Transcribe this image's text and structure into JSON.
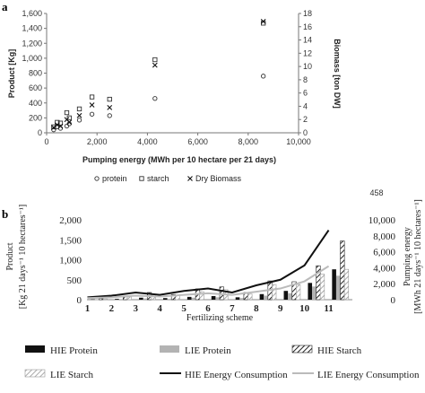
{
  "page_number": "458",
  "chart_data": [
    {
      "type": "scatter",
      "panel_label": "a",
      "xlabel": "Pumping energy (MWh per 10 hectare per 21 days)",
      "ylabel": "Product [Kg]",
      "y2label": "Biomass [ton DW]",
      "xlim": [
        0,
        10000
      ],
      "ylim": [
        0,
        1600
      ],
      "y2lim": [
        0,
        18
      ],
      "xticks": [
        "0",
        "2,000",
        "4,000",
        "6,000",
        "8,000",
        "10,000"
      ],
      "yticks": [
        "0",
        "200",
        "400",
        "600",
        "800",
        "1,000",
        "1,200",
        "1,400",
        "1,600"
      ],
      "y2ticks": [
        "0",
        "2",
        "4",
        "6",
        "8",
        "10",
        "12",
        "14",
        "16",
        "18"
      ],
      "grid": false,
      "legend_position": "bottom",
      "series": [
        {
          "name": "protein",
          "marker": "circle",
          "axis": "left",
          "x": [
            280,
            420,
            550,
            800,
            900,
            1300,
            1800,
            2500,
            4300,
            8600
          ],
          "y": [
            40,
            80,
            60,
            90,
            120,
            170,
            250,
            230,
            460,
            760
          ]
        },
        {
          "name": "starch",
          "marker": "square",
          "axis": "left",
          "x": [
            280,
            420,
            550,
            800,
            900,
            1300,
            1800,
            2500,
            4300,
            8600
          ],
          "y": [
            80,
            140,
            130,
            270,
            200,
            320,
            480,
            450,
            980,
            1470
          ]
        },
        {
          "name": "Dry Biomass",
          "marker": "x",
          "axis": "right",
          "x": [
            280,
            420,
            550,
            800,
            900,
            1300,
            1800,
            2500,
            4300,
            8600
          ],
          "y": [
            0.8,
            1.2,
            1.0,
            2.0,
            1.6,
            2.6,
            4.2,
            3.8,
            10.2,
            16.8
          ]
        }
      ]
    },
    {
      "type": "bar",
      "panel_label": "b",
      "xlabel": "Fertilizing scheme",
      "ylabel": "Product",
      "ylabel_sub": "[Kg 21 days⁻¹ 10 hectares⁻¹]",
      "y2label": "Pumping energy",
      "y2label_sub": "[MWh 21 days⁻¹ 10 hectares⁻¹]",
      "categories": [
        "1",
        "2",
        "3",
        "4",
        "5",
        "6",
        "7",
        "8",
        "9",
        "10",
        "11"
      ],
      "ylim": [
        0,
        2000
      ],
      "y2lim": [
        0,
        10000
      ],
      "yticks": [
        "0",
        "500",
        "1,000",
        "1,500",
        "2,000"
      ],
      "y2ticks": [
        "0",
        "2,000",
        "4,000",
        "6,000",
        "8,000",
        "10,000"
      ],
      "grid": false,
      "legend_position": "bottom",
      "series": [
        {
          "name": "HIE Protein",
          "type": "bar",
          "style": "black",
          "values": [
            10,
            20,
            50,
            40,
            70,
            90,
            60,
            140,
            220,
            420,
            760
          ]
        },
        {
          "name": "LIE Protein",
          "type": "bar",
          "style": "gray",
          "values": [
            5,
            15,
            30,
            20,
            50,
            60,
            40,
            100,
            160,
            330,
            600
          ]
        },
        {
          "name": "HIE Starch",
          "type": "bar",
          "style": "hatch-dark",
          "values": [
            30,
            90,
            180,
            130,
            270,
            320,
            180,
            470,
            450,
            850,
            1470
          ]
        },
        {
          "name": "LIE Starch",
          "type": "bar",
          "style": "hatch-light",
          "values": [
            20,
            70,
            140,
            100,
            200,
            250,
            140,
            380,
            380,
            640,
            760
          ]
        },
        {
          "name": "HIE Energy Consumption",
          "type": "line",
          "axis": "right",
          "color": "#111111",
          "values": [
            300,
            500,
            900,
            600,
            1100,
            1400,
            900,
            1800,
            2500,
            4300,
            8700
          ]
        },
        {
          "name": "LIE Energy Consumption",
          "type": "line",
          "axis": "right",
          "color": "#bbbbbb",
          "values": [
            200,
            300,
            500,
            400,
            600,
            800,
            600,
            1000,
            1400,
            2300,
            4200
          ]
        }
      ]
    }
  ]
}
